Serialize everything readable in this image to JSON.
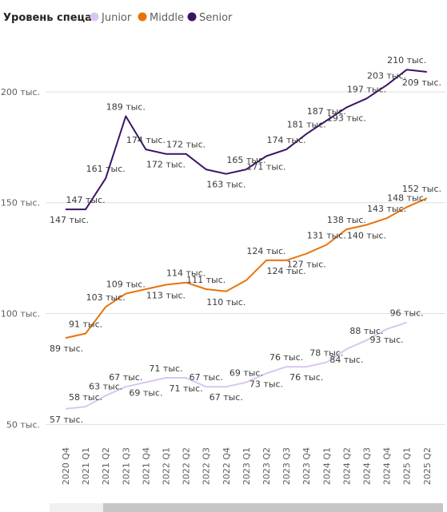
{
  "chart_data": {
    "type": "line",
    "legend": {
      "title": "Уровень спеца",
      "position": "top-left"
    },
    "categories": [
      "2020 Q4",
      "2021 Q1",
      "2021 Q2",
      "2021 Q3",
      "2021 Q4",
      "2022 Q1",
      "2022 Q2",
      "2022 Q3",
      "2022 Q4",
      "2023 Q1",
      "2023 Q2",
      "2023 Q3",
      "2023 Q4",
      "2024 Q1",
      "2024 Q2",
      "2024 Q3",
      "2024 Q4",
      "2025 Q1",
      "2025 Q2"
    ],
    "y_ticks": [
      {
        "value": 50,
        "label": "50 тыс."
      },
      {
        "value": 100,
        "label": "100 тыс."
      },
      {
        "value": 150,
        "label": "150 тыс."
      },
      {
        "value": 200,
        "label": "200 тыс."
      }
    ],
    "ylim": [
      44,
      227
    ],
    "grid": true,
    "series": [
      {
        "name": "Junior",
        "color": "#d9c7ef",
        "values": [
          57,
          58,
          63,
          67,
          69,
          71,
          71,
          67,
          67,
          69,
          73,
          76,
          76,
          78,
          84,
          88,
          93,
          96,
          null
        ],
        "labels": [
          "57 тыс.",
          "58 тыс.",
          "63 тыс.",
          "67 тыс.",
          "69 тыс.",
          "71 тыс.",
          "71 тыс.",
          "67 тыс.",
          "67 тыс.",
          "69 тыс.",
          "73 тыс.",
          "76 тыс.",
          "76 тыс.",
          "78 тыс.",
          "84 тыс.",
          "88 тыс.",
          "93 тыс.",
          "96 тыс.",
          ""
        ],
        "label_pos": [
          "below",
          "above",
          "above",
          "above",
          "below",
          "above",
          "below",
          "above",
          "below",
          "above",
          "below",
          "above",
          "below",
          "above",
          "below",
          "above",
          "below",
          "above",
          ""
        ]
      },
      {
        "name": "Middle",
        "color": "#e8730c",
        "values": [
          89,
          91,
          103,
          109,
          111,
          113,
          114,
          111,
          110,
          115,
          124,
          124,
          127,
          131,
          138,
          140,
          143,
          148,
          152
        ],
        "labels": [
          "89 тыс.",
          "91 тыс.",
          "103 тыс.",
          "109 тыс.",
          "",
          "113 тыс.",
          "114 тыс.",
          "111 тыс.",
          "110 тыс.",
          "",
          "124 тыс.",
          "124 тыс.",
          "127 тыс.",
          "131 тыс.",
          "138 тыс.",
          "140 тыс.",
          "143 тыс.",
          "148 тыс.",
          "152 тыс."
        ],
        "label_pos": [
          "below",
          "above",
          "above",
          "above",
          "",
          "below",
          "above",
          "above",
          "below",
          "",
          "above",
          "below",
          "below",
          "above",
          "above",
          "below",
          "above",
          "above",
          "above"
        ]
      },
      {
        "name": "Senior",
        "color": "#3b1366",
        "values": [
          147,
          147,
          161,
          189,
          174,
          172,
          172,
          165,
          163,
          165,
          171,
          174,
          181,
          187,
          193,
          197,
          203,
          210,
          209
        ],
        "labels": [
          "147 тыс.",
          "147 тыс.",
          "161 тыс.",
          "189 тыс.",
          "174 тыс.",
          "172 тыс.",
          "172 тыс.",
          "",
          "163 тыс.",
          "165 тыс.",
          "171 тыс.",
          "174 тыс.",
          "181 тыс.",
          "187 тыс.",
          "193 тыс.",
          "197 тыс.",
          "203 тыс.",
          "210 тыс.",
          "209 тыс."
        ],
        "label_pos": [
          "below",
          "above",
          "above",
          "above",
          "above",
          "below",
          "above",
          "",
          "below",
          "above",
          "below",
          "above",
          "above",
          "above",
          "below",
          "above",
          "above",
          "above",
          "below"
        ]
      }
    ]
  }
}
